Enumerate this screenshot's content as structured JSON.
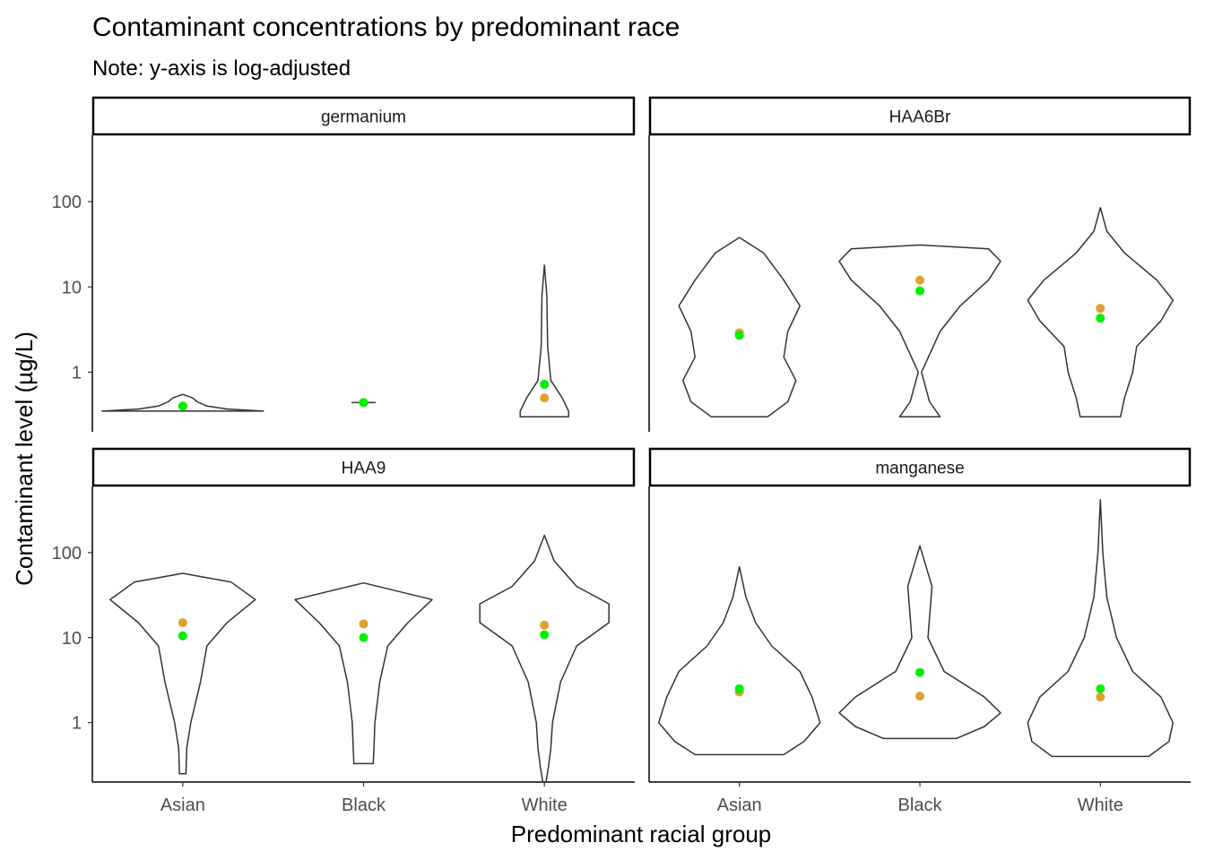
{
  "chart_data": {
    "type": "violin",
    "title": "Contaminant concentrations by predominant race",
    "subtitle": "Note: y-axis is log-adjusted",
    "xlabel": "Predominant racial group",
    "ylabel": "Contaminant level (µg/L)",
    "y_scale": "log10",
    "y_ticks": [
      1,
      10,
      100
    ],
    "y_tick_labels": [
      "1",
      "10",
      "100"
    ],
    "categories": [
      "Asian",
      "Black",
      "White"
    ],
    "grid": false,
    "legend": "none",
    "colors": {
      "median_point": "#e0a030",
      "mean_point": "#00ee00",
      "violin_stroke": "#333333",
      "strip_border": "#000000"
    },
    "facets": [
      {
        "name": "germanium",
        "ylim": [
          0.2,
          600
        ],
        "groups": [
          {
            "category": "Asian",
            "min": 0.35,
            "max": 0.55,
            "profile": [
              [
                0.35,
                1.0
              ],
              [
                0.37,
                0.55
              ],
              [
                0.4,
                0.3
              ],
              [
                0.45,
                0.18
              ],
              [
                0.5,
                0.12
              ],
              [
                0.55,
                0.0
              ]
            ],
            "median": 0.4,
            "mean": 0.4
          },
          {
            "category": "Black",
            "min": 0.44,
            "max": 0.44,
            "profile": [
              [
                0.44,
                0.15
              ]
            ],
            "median": 0.44,
            "mean": 0.44
          },
          {
            "category": "White",
            "min": 0.3,
            "max": 18,
            "profile": [
              [
                0.3,
                0.3
              ],
              [
                0.35,
                0.3
              ],
              [
                0.5,
                0.22
              ],
              [
                0.8,
                0.08
              ],
              [
                2,
                0.04
              ],
              [
                8,
                0.03
              ],
              [
                18,
                0.0
              ]
            ],
            "median": 0.5,
            "mean": 0.72
          }
        ]
      },
      {
        "name": "HAA6Br",
        "ylim": [
          0.2,
          600
        ],
        "groups": [
          {
            "category": "Asian",
            "min": 0.3,
            "max": 38,
            "profile": [
              [
                0.3,
                0.35
              ],
              [
                0.45,
                0.6
              ],
              [
                0.8,
                0.7
              ],
              [
                1.5,
                0.55
              ],
              [
                3,
                0.6
              ],
              [
                6,
                0.75
              ],
              [
                12,
                0.55
              ],
              [
                25,
                0.3
              ],
              [
                38,
                0.0
              ]
            ],
            "median": 2.9,
            "mean": 2.7
          },
          {
            "category": "Black",
            "min": 0.3,
            "max": 31,
            "profile": [
              [
                0.3,
                0.25
              ],
              [
                0.45,
                0.12
              ],
              [
                1,
                0.02
              ],
              [
                3,
                0.25
              ],
              [
                6,
                0.5
              ],
              [
                12,
                0.85
              ],
              [
                20,
                1.0
              ],
              [
                28,
                0.85
              ],
              [
                31,
                0.0
              ]
            ],
            "median": 12,
            "mean": 9
          },
          {
            "category": "White",
            "min": 0.3,
            "max": 85,
            "profile": [
              [
                0.3,
                0.25
              ],
              [
                0.5,
                0.3
              ],
              [
                1,
                0.4
              ],
              [
                2,
                0.45
              ],
              [
                4,
                0.75
              ],
              [
                7,
                0.9
              ],
              [
                12,
                0.7
              ],
              [
                25,
                0.3
              ],
              [
                45,
                0.08
              ],
              [
                85,
                0.0
              ]
            ],
            "median": 5.6,
            "mean": 4.3
          }
        ]
      },
      {
        "name": "HAA9",
        "ylim": [
          0.2,
          600
        ],
        "groups": [
          {
            "category": "Asian",
            "min": 0.25,
            "max": 57,
            "profile": [
              [
                0.25,
                0.04
              ],
              [
                0.5,
                0.05
              ],
              [
                1,
                0.1
              ],
              [
                3,
                0.22
              ],
              [
                8,
                0.3
              ],
              [
                15,
                0.55
              ],
              [
                28,
                0.9
              ],
              [
                45,
                0.6
              ],
              [
                57,
                0.0
              ]
            ],
            "median": 15,
            "mean": 10.5
          },
          {
            "category": "Black",
            "min": 0.33,
            "max": 44,
            "profile": [
              [
                0.33,
                0.12
              ],
              [
                0.55,
                0.13
              ],
              [
                1,
                0.14
              ],
              [
                3,
                0.2
              ],
              [
                8,
                0.3
              ],
              [
                15,
                0.55
              ],
              [
                28,
                0.85
              ],
              [
                44,
                0.0
              ]
            ],
            "median": 14.5,
            "mean": 10
          },
          {
            "category": "White",
            "min": 0.2,
            "max": 160,
            "profile": [
              [
                0.2,
                0.02
              ],
              [
                0.3,
                0.05
              ],
              [
                0.5,
                0.08
              ],
              [
                1,
                0.1
              ],
              [
                3,
                0.2
              ],
              [
                8,
                0.4
              ],
              [
                15,
                0.8
              ],
              [
                25,
                0.8
              ],
              [
                40,
                0.4
              ],
              [
                80,
                0.12
              ],
              [
                160,
                0.0
              ]
            ],
            "median": 14,
            "mean": 10.8
          }
        ]
      },
      {
        "name": "manganese",
        "ylim": [
          0.2,
          600
        ],
        "groups": [
          {
            "category": "Asian",
            "min": 0.42,
            "max": 68,
            "profile": [
              [
                0.42,
                0.55
              ],
              [
                0.6,
                0.8
              ],
              [
                1,
                1.0
              ],
              [
                2,
                0.9
              ],
              [
                4,
                0.75
              ],
              [
                8,
                0.4
              ],
              [
                15,
                0.2
              ],
              [
                30,
                0.08
              ],
              [
                68,
                0.0
              ]
            ],
            "median": 2.3,
            "mean": 2.5
          },
          {
            "category": "Black",
            "min": 0.65,
            "max": 120,
            "profile": [
              [
                0.65,
                0.45
              ],
              [
                0.9,
                0.8
              ],
              [
                1.3,
                1.0
              ],
              [
                2,
                0.8
              ],
              [
                4,
                0.3
              ],
              [
                10,
                0.1
              ],
              [
                40,
                0.15
              ],
              [
                120,
                0.0
              ]
            ],
            "median": 2.05,
            "mean": 3.9
          },
          {
            "category": "White",
            "min": 0.4,
            "max": 420,
            "profile": [
              [
                0.4,
                0.6
              ],
              [
                0.6,
                0.85
              ],
              [
                1,
                0.9
              ],
              [
                2,
                0.75
              ],
              [
                4,
                0.4
              ],
              [
                10,
                0.2
              ],
              [
                30,
                0.08
              ],
              [
                100,
                0.03
              ],
              [
                420,
                0.0
              ]
            ],
            "median": 2.0,
            "mean": 2.5
          }
        ]
      }
    ]
  }
}
